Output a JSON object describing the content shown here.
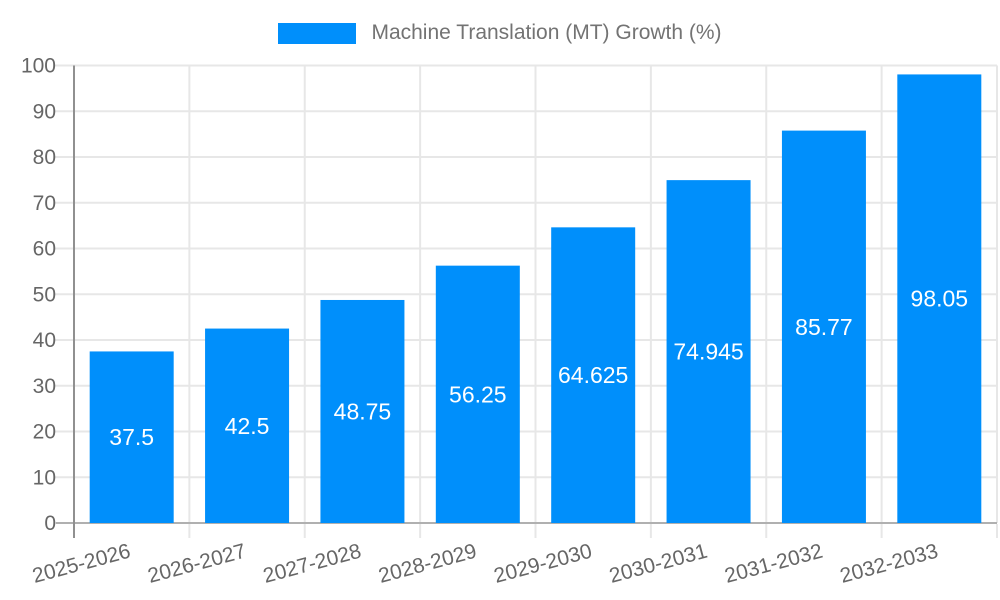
{
  "chart_data": {
    "type": "bar",
    "title": "Machine Translation (MT) Growth (%)",
    "categories": [
      "2025-2026",
      "2026-2027",
      "2027-2028",
      "2028-2029",
      "2029-2030",
      "2030-2031",
      "2031-2032",
      "2032-2033"
    ],
    "series": [
      {
        "name": "Machine Translation (MT) Growth (%)",
        "values": [
          37.5,
          42.5,
          48.75,
          56.25,
          64.625,
          74.945,
          85.77,
          98.05
        ]
      }
    ],
    "value_labels": [
      "37.5",
      "42.5",
      "48.75",
      "56.25",
      "64.625",
      "74.945",
      "85.77",
      "98.05"
    ],
    "xlabel": "",
    "ylabel": "",
    "ylim": [
      0,
      100
    ],
    "y_tick_step": 10,
    "grid": true,
    "legend_position": "top",
    "x_label_rotation": -15,
    "colors": {
      "bar": "#008FFB",
      "grid": "#e7e7e7",
      "axis_x": "#b0b0b0",
      "axis_y": "#909090",
      "tick_label": "#666666",
      "title": "#737373",
      "value_label": "#ffffff",
      "background": "#ffffff"
    }
  }
}
